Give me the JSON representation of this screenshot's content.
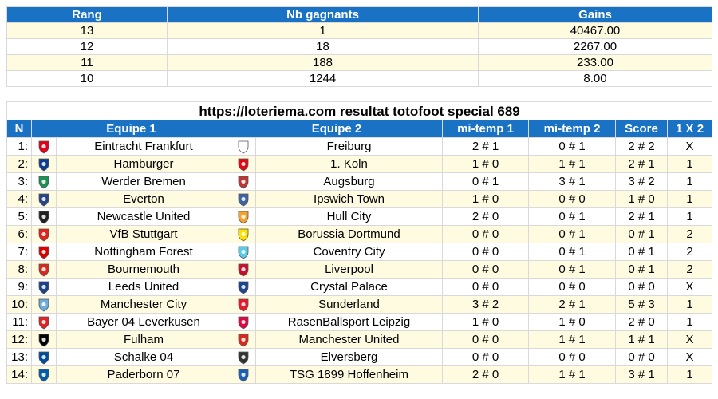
{
  "prizes": {
    "headers": [
      "Rang",
      "Nb gagnants",
      "Gains"
    ],
    "rows": [
      [
        "13",
        "1",
        "40467.00"
      ],
      [
        "12",
        "18",
        "2267.00"
      ],
      [
        "11",
        "188",
        "233.00"
      ],
      [
        "10",
        "1244",
        "8.00"
      ]
    ]
  },
  "results": {
    "title": "https://loteriema.com resultat totofoot special 689",
    "headers": [
      "N",
      "Equipe 1",
      "Equipe 2",
      "mi-temp 1",
      "mi-temp 2",
      "Score",
      "1 X 2"
    ],
    "rows": [
      {
        "n": "1:",
        "team1": "Eintracht Frankfurt",
        "team2": "Freiburg",
        "ht1": "2 # 1",
        "ht2": "0 # 1",
        "score": "2 # 2",
        "pick": "X",
        "logo1": "eintracht-frankfurt-logo",
        "logo2": "freiburg-logo",
        "c1": "#e2001a",
        "c2": "#ffffff"
      },
      {
        "n": "2:",
        "team1": "Hamburger",
        "team2": "1. Koln",
        "ht1": "1 # 0",
        "ht2": "1 # 1",
        "score": "2 # 1",
        "pick": "1",
        "logo1": "hamburger-logo",
        "logo2": "koln-logo",
        "c1": "#0a3d91",
        "c2": "#e30613"
      },
      {
        "n": "3:",
        "team1": "Werder Bremen",
        "team2": "Augsburg",
        "ht1": "0 # 1",
        "ht2": "3 # 1",
        "score": "3 # 2",
        "pick": "1",
        "logo1": "werder-bremen-logo",
        "logo2": "augsburg-logo",
        "c1": "#1d9053",
        "c2": "#ba3733"
      },
      {
        "n": "4:",
        "team1": "Everton",
        "team2": "Ipswich Town",
        "ht1": "1 # 0",
        "ht2": "0 # 0",
        "score": "1 # 0",
        "pick": "1",
        "logo1": "everton-logo",
        "logo2": "ipswich-town-logo",
        "c1": "#274488",
        "c2": "#3a64a3"
      },
      {
        "n": "5:",
        "team1": "Newcastle United",
        "team2": "Hull City",
        "ht1": "2 # 0",
        "ht2": "0 # 1",
        "score": "2 # 1",
        "pick": "1",
        "logo1": "newcastle-united-logo",
        "logo2": "hull-city-logo",
        "c1": "#241f20",
        "c2": "#f5a12d"
      },
      {
        "n": "6:",
        "team1": "VfB Stuttgart",
        "team2": "Borussia Dortmund",
        "ht1": "0 # 0",
        "ht2": "0 # 1",
        "score": "0 # 1",
        "pick": "2",
        "logo1": "vfb-stuttgart-logo",
        "logo2": "borussia-dortmund-logo",
        "c1": "#e32219",
        "c2": "#fde100"
      },
      {
        "n": "7:",
        "team1": "Nottingham Forest",
        "team2": "Coventry City",
        "ht1": "0 # 0",
        "ht2": "0 # 1",
        "score": "0 # 1",
        "pick": "2",
        "logo1": "nottingham-forest-logo",
        "logo2": "coventry-city-logo",
        "c1": "#dd0000",
        "c2": "#59cbe8"
      },
      {
        "n": "8:",
        "team1": "Bournemouth",
        "team2": "Liverpool",
        "ht1": "0 # 0",
        "ht2": "0 # 1",
        "score": "0 # 1",
        "pick": "2",
        "logo1": "bournemouth-logo",
        "logo2": "liverpool-logo",
        "c1": "#da291c",
        "c2": "#c8102e"
      },
      {
        "n": "9:",
        "team1": "Leeds United",
        "team2": "Crystal Palace",
        "ht1": "0 # 0",
        "ht2": "0 # 0",
        "score": "0 # 0",
        "pick": "X",
        "logo1": "leeds-united-logo",
        "logo2": "crystal-palace-logo",
        "c1": "#1d428a",
        "c2": "#1b458f"
      },
      {
        "n": "10:",
        "team1": "Manchester City",
        "team2": "Sunderland",
        "ht1": "3 # 2",
        "ht2": "2 # 1",
        "score": "5 # 3",
        "pick": "1",
        "logo1": "manchester-city-logo",
        "logo2": "sunderland-logo",
        "c1": "#6cabdd",
        "c2": "#eb172b"
      },
      {
        "n": "11:",
        "team1": "Bayer 04 Leverkusen",
        "team2": "RasenBallsport Leipzig",
        "ht1": "1 # 0",
        "ht2": "1 # 0",
        "score": "2 # 0",
        "pick": "1",
        "logo1": "bayer-leverkusen-logo",
        "logo2": "rb-leipzig-logo",
        "c1": "#e32221",
        "c2": "#dd0741"
      },
      {
        "n": "12:",
        "team1": "Fulham",
        "team2": "Manchester United",
        "ht1": "0 # 0",
        "ht2": "1 # 1",
        "score": "1 # 1",
        "pick": "X",
        "logo1": "fulham-logo",
        "logo2": "manchester-united-logo",
        "c1": "#000000",
        "c2": "#da291c"
      },
      {
        "n": "13:",
        "team1": "Schalke 04",
        "team2": "Elversberg",
        "ht1": "0 # 0",
        "ht2": "0 # 0",
        "score": "0 # 0",
        "pick": "X",
        "logo1": "schalke-logo",
        "logo2": "elversberg-logo",
        "c1": "#004d9d",
        "c2": "#333333"
      },
      {
        "n": "14:",
        "team1": "Paderborn 07",
        "team2": "TSG 1899 Hoffenheim",
        "ht1": "2 # 0",
        "ht2": "1 # 1",
        "score": "3 # 1",
        "pick": "1",
        "logo1": "paderborn-logo",
        "logo2": "hoffenheim-logo",
        "c1": "#005ca9",
        "c2": "#1961b5"
      }
    ]
  }
}
